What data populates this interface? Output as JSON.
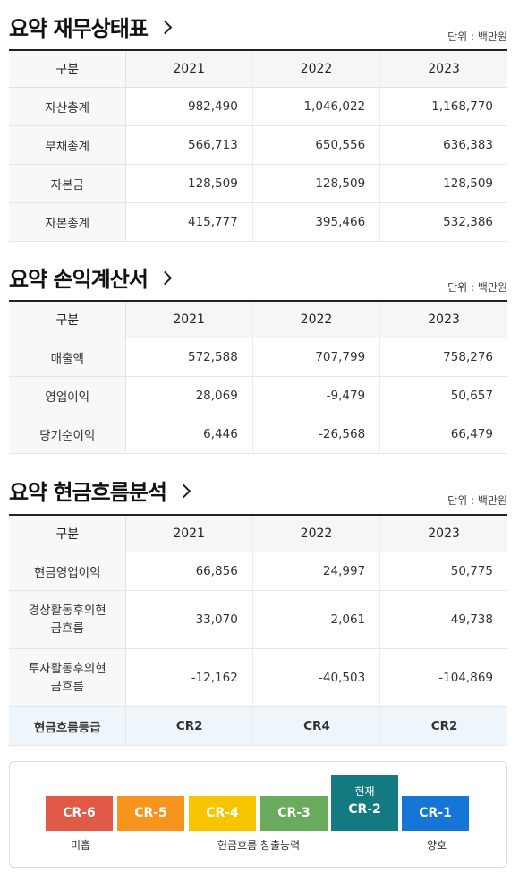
{
  "balance": {
    "title": "요약 재무상태표",
    "unit": "단위 : 백만원",
    "header": [
      "구분",
      "2021",
      "2022",
      "2023"
    ],
    "rows": [
      {
        "label": "자산총계",
        "values": [
          "982,490",
          "1,046,022",
          "1,168,770"
        ]
      },
      {
        "label": "부채총계",
        "values": [
          "566,713",
          "650,556",
          "636,383"
        ]
      },
      {
        "label": "자본금",
        "values": [
          "128,509",
          "128,509",
          "128,509"
        ]
      },
      {
        "label": "자본총계",
        "values": [
          "415,777",
          "395,466",
          "532,386"
        ]
      }
    ]
  },
  "income": {
    "title": "요약 손익계산서",
    "unit": "단위 : 백만원",
    "header": [
      "구분",
      "2021",
      "2022",
      "2023"
    ],
    "rows": [
      {
        "label": "매출액",
        "values": [
          "572,588",
          "707,799",
          "758,276"
        ]
      },
      {
        "label": "영업이익",
        "values": [
          "28,069",
          "-9,479",
          "50,657"
        ]
      },
      {
        "label": "당기순이익",
        "values": [
          "6,446",
          "-26,568",
          "66,479"
        ]
      }
    ]
  },
  "cashflow": {
    "title": "요약 현금흐름분석",
    "unit": "단위 : 백만원",
    "header": [
      "구분",
      "2021",
      "2022",
      "2023"
    ],
    "rows": [
      {
        "label": "현금영업이익",
        "values": [
          "66,856",
          "24,997",
          "50,775"
        ]
      },
      {
        "label_lines": [
          "경상활동후의현",
          "금흐름"
        ],
        "values": [
          "33,070",
          "2,061",
          "49,738"
        ]
      },
      {
        "label_lines": [
          "투자활동후의현",
          "금흐름"
        ],
        "values": [
          "-12,162",
          "-40,503",
          "-104,869"
        ]
      }
    ],
    "grade_row": {
      "label": "현금흐름등급",
      "values": [
        "CR2",
        "CR4",
        "CR2"
      ]
    }
  },
  "grade_scale": {
    "current_label": "현재",
    "items": [
      {
        "code": "CR-6",
        "color": "#e05a47"
      },
      {
        "code": "CR-5",
        "color": "#f7941d"
      },
      {
        "code": "CR-4",
        "color": "#f7c400"
      },
      {
        "code": "CR-3",
        "color": "#6aab5d"
      },
      {
        "code": "CR-2",
        "color": "#137a82",
        "current": true
      },
      {
        "code": "CR-1",
        "color": "#1576d8"
      }
    ],
    "labels": {
      "low": "미흡",
      "middle": "현금흐름 창출능력",
      "high": "양호"
    }
  }
}
